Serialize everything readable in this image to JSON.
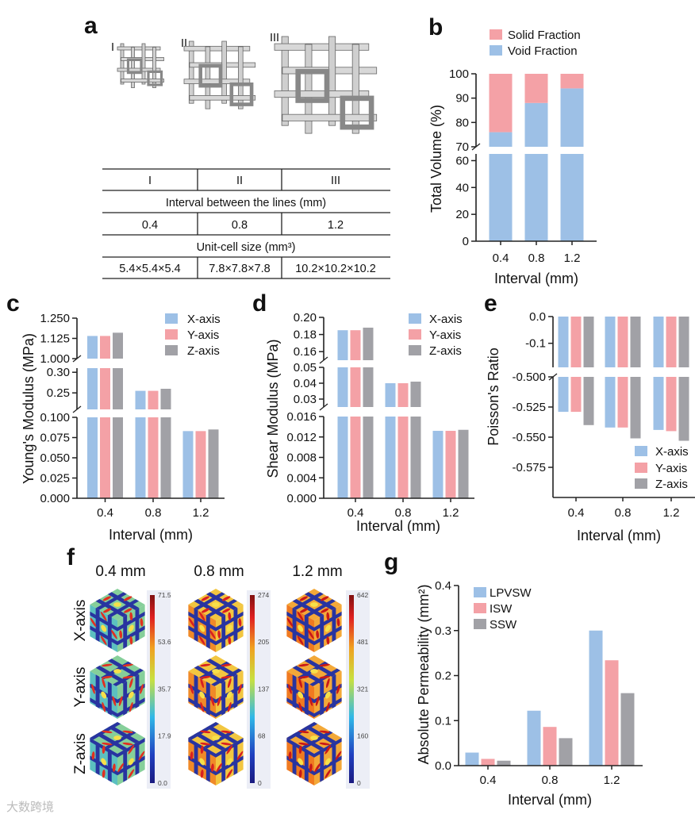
{
  "panel_labels": {
    "a": "a",
    "b": "b",
    "c": "c",
    "d": "d",
    "e": "e",
    "f": "f",
    "g": "g"
  },
  "panel_a": {
    "structures": [
      "I",
      "II",
      "III"
    ],
    "table": {
      "header": [
        "I",
        "II",
        "III"
      ],
      "interval_title": "Interval between the lines (mm)",
      "intervals": [
        "0.4",
        "0.8",
        "1.2"
      ],
      "unit_cell_title": "Unit-cell size (mm³)",
      "unit_cell_sizes": [
        "5.4×5.4×5.4",
        "7.8×7.8×7.8",
        "10.2×10.2×10.2"
      ]
    }
  },
  "panel_f": {
    "columns": [
      "0.4 mm",
      "0.8 mm",
      "1.2 mm"
    ],
    "rows": [
      "X-axis",
      "Y-axis",
      "Z-axis"
    ],
    "colorbars": [
      [
        "71.5",
        "53.6",
        "35.7",
        "17.9",
        "0.0"
      ],
      [
        "274",
        "205",
        "137",
        "68",
        "0"
      ],
      [
        "642",
        "481",
        "321",
        "160",
        "0"
      ]
    ]
  },
  "watermark": "大数跨境",
  "chart_data": [
    {
      "id": "b",
      "type": "bar",
      "stacked": true,
      "categories": [
        "0.4",
        "0.8",
        "1.2"
      ],
      "xlabel": "Interval (mm)",
      "ylabel": "Total Volume (%)",
      "segments": [
        {
          "range": [
            0,
            65
          ],
          "ticks": [
            "0",
            "20",
            "40",
            "60"
          ]
        },
        {
          "range": [
            70,
            100
          ],
          "ticks": [
            "70",
            "80",
            "90",
            "100"
          ]
        }
      ],
      "series": [
        {
          "name": "Void Fraction",
          "values": [
            76,
            88,
            94
          ],
          "color": "#9dc0e6"
        },
        {
          "name": "Solid Fraction",
          "values": [
            24,
            12,
            6
          ],
          "color": "#f4a1a6"
        }
      ],
      "legend_order": [
        1,
        0
      ]
    },
    {
      "id": "c",
      "type": "bar",
      "categories": [
        "0.4",
        "0.8",
        "1.2"
      ],
      "xlabel": "Interval (mm)",
      "ylabel": "Young's Modulus (MPa)",
      "segments": [
        {
          "range": [
            0,
            0.1
          ],
          "ticks": [
            "0.000",
            "0.025",
            "0.050",
            "0.075",
            "0.100"
          ]
        },
        {
          "range": [
            0.21,
            0.31
          ],
          "ticks": [
            "0.25",
            "0.30"
          ]
        },
        {
          "range": [
            1.0,
            1.25
          ],
          "ticks": [
            "1.000",
            "1.125",
            "1.250"
          ]
        }
      ],
      "series": [
        {
          "name": "X-axis",
          "values": [
            1.14,
            0.255,
            0.083
          ],
          "color": "#9dc0e6"
        },
        {
          "name": "Y-axis",
          "values": [
            1.14,
            0.255,
            0.083
          ],
          "color": "#f4a1a6"
        },
        {
          "name": "Z-axis",
          "values": [
            1.16,
            0.26,
            0.085
          ],
          "color": "#a1a1a6"
        }
      ],
      "legend_order": [
        0,
        1,
        2
      ]
    },
    {
      "id": "d",
      "type": "bar",
      "categories": [
        "0.4",
        "0.8",
        "1.2"
      ],
      "xlabel": "Interval (mm)",
      "ylabel": "Shear Modulus (MPa)",
      "segments": [
        {
          "range": [
            0,
            0.016
          ],
          "ticks": [
            "0.000",
            "0.004",
            "0.008",
            "0.012",
            "0.016"
          ]
        },
        {
          "range": [
            0.025,
            0.05
          ],
          "ticks": [
            "0.03",
            "0.04",
            "0.05"
          ]
        },
        {
          "range": [
            0.15,
            0.2
          ],
          "ticks": [
            "0.16",
            "0.18",
            "0.20"
          ]
        }
      ],
      "series": [
        {
          "name": "X-axis",
          "values": [
            0.185,
            0.04,
            0.0132
          ],
          "color": "#9dc0e6"
        },
        {
          "name": "Y-axis",
          "values": [
            0.185,
            0.04,
            0.0132
          ],
          "color": "#f4a1a6"
        },
        {
          "name": "Z-axis",
          "values": [
            0.188,
            0.041,
            0.0134
          ],
          "color": "#a1a1a6"
        }
      ],
      "legend_order": [
        0,
        1,
        2
      ]
    },
    {
      "id": "e",
      "type": "bar",
      "categories": [
        "0.4",
        "0.8",
        "1.2"
      ],
      "xlabel": "Interval (mm)",
      "ylabel": "Poisson's Ratio",
      "segments": [
        {
          "range": [
            -0.19,
            0
          ],
          "ticks": [
            "-0.1",
            "0.0"
          ]
        },
        {
          "range": [
            -0.6,
            -0.5
          ],
          "ticks": [
            "-0.575",
            "-0.550",
            "-0.525",
            "-0.500"
          ]
        }
      ],
      "series": [
        {
          "name": "X-axis",
          "values": [
            -0.529,
            -0.542,
            -0.544
          ],
          "color": "#9dc0e6"
        },
        {
          "name": "Y-axis",
          "values": [
            -0.529,
            -0.542,
            -0.545
          ],
          "color": "#f4a1a6"
        },
        {
          "name": "Z-axis",
          "values": [
            -0.54,
            -0.551,
            -0.553
          ],
          "color": "#a1a1a6"
        }
      ],
      "legend_order": [
        0,
        1,
        2
      ]
    },
    {
      "id": "g",
      "type": "bar",
      "categories": [
        "0.4",
        "0.8",
        "1.2"
      ],
      "xlabel": "Interval (mm)",
      "ylabel": "Absolute Permeability (mm²)",
      "segments": [
        {
          "range": [
            0,
            0.4
          ],
          "ticks": [
            "0.0",
            "0.1",
            "0.2",
            "0.3",
            "0.4"
          ]
        }
      ],
      "series": [
        {
          "name": "LPVSW",
          "values": [
            0.029,
            0.122,
            0.3
          ],
          "color": "#9dc0e6"
        },
        {
          "name": "ISW",
          "values": [
            0.015,
            0.086,
            0.234
          ],
          "color": "#f4a1a6"
        },
        {
          "name": "SSW",
          "values": [
            0.011,
            0.061,
            0.161
          ],
          "color": "#a1a1a6"
        }
      ],
      "legend_order": [
        0,
        1,
        2
      ]
    }
  ]
}
